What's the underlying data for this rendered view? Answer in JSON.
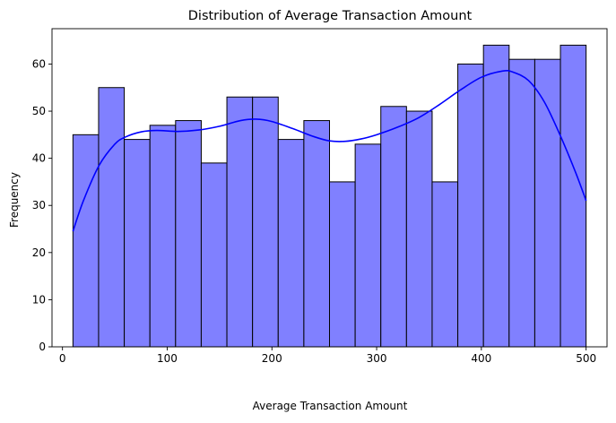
{
  "chart_data": {
    "type": "bar",
    "title": "Distribution of Average Transaction Amount",
    "xlabel": "Average Transaction Amount",
    "ylabel": "Frequency",
    "xlim": [
      -10,
      520
    ],
    "ylim": [
      0,
      67.5
    ],
    "bin_edges": [
      10,
      34.5,
      59,
      83.5,
      108,
      132.5,
      157,
      181.5,
      206,
      230.5,
      255,
      279.5,
      304,
      328.5,
      353,
      377.5,
      402,
      426.5,
      451,
      475.5,
      500
    ],
    "values": [
      45,
      55,
      44,
      47,
      48,
      39,
      53,
      53,
      44,
      48,
      35,
      43,
      51,
      50,
      35,
      60,
      64,
      61,
      61,
      64
    ],
    "x_ticks": [
      0,
      100,
      200,
      300,
      400,
      500
    ],
    "x_tick_labels": [
      "0",
      "100",
      "200",
      "300",
      "400",
      "500"
    ],
    "y_ticks": [
      0,
      10,
      20,
      30,
      40,
      50,
      60
    ],
    "y_tick_labels": [
      "0",
      "10",
      "20",
      "30",
      "40",
      "50",
      "60"
    ],
    "bar_fill": "#8080ff",
    "bar_edge": "#000000",
    "kde": {
      "color": "#0000ff",
      "x": [
        10,
        20,
        35,
        50,
        60,
        75,
        90,
        110,
        130,
        150,
        170,
        185,
        200,
        220,
        240,
        255,
        270,
        285,
        300,
        320,
        340,
        360,
        380,
        400,
        420,
        430,
        445,
        460,
        475,
        490,
        500
      ],
      "y": [
        24.5,
        31,
        38.5,
        43,
        44.5,
        45.6,
        45.9,
        45.7,
        46,
        46.8,
        48,
        48.3,
        47.8,
        46.3,
        44.6,
        43.7,
        43.6,
        44.1,
        45,
        46.6,
        48.6,
        51.4,
        54.5,
        57.2,
        58.5,
        58.3,
        56.5,
        52,
        45,
        37,
        31
      ]
    },
    "grid": false,
    "legend": "none"
  }
}
